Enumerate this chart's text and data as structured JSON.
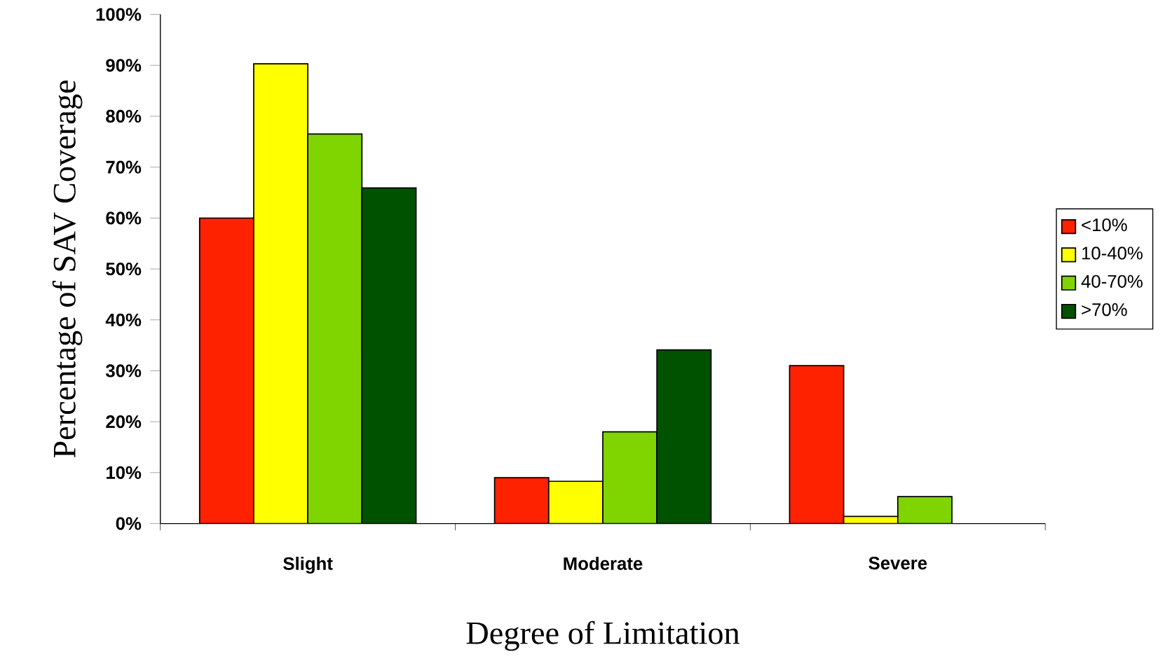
{
  "chart_data": {
    "type": "bar",
    "xlabel": "Degree of Limitation",
    "ylabel": "Percentage of SAV Coverage",
    "categories": [
      "Slight",
      "Moderate",
      "Severe"
    ],
    "series": [
      {
        "name": "<10%",
        "color": "#ff2200",
        "values": [
          60,
          9,
          31
        ]
      },
      {
        "name": "10-40%",
        "color": "#ffff00",
        "values": [
          90.3,
          8.3,
          1.4
        ]
      },
      {
        "name": "40-70%",
        "color": "#80d400",
        "values": [
          76.5,
          18,
          5.3
        ]
      },
      {
        "name": ">70%",
        "color": "#005200",
        "values": [
          65.9,
          34.1,
          null
        ]
      }
    ],
    "ylim": [
      0,
      100
    ],
    "yticks": [
      {
        "value": 0,
        "label": "0%"
      },
      {
        "value": 10,
        "label": "10%"
      },
      {
        "value": 20,
        "label": "20%"
      },
      {
        "value": 30,
        "label": "30%"
      },
      {
        "value": 40,
        "label": "40%"
      },
      {
        "value": 50,
        "label": "50%"
      },
      {
        "value": 60,
        "label": "60%"
      },
      {
        "value": 70,
        "label": "70%"
      },
      {
        "value": 80,
        "label": "80%"
      },
      {
        "value": 90,
        "label": "90%"
      },
      {
        "value": 100,
        "label": "100%"
      }
    ],
    "legend": "right",
    "grid": false
  }
}
